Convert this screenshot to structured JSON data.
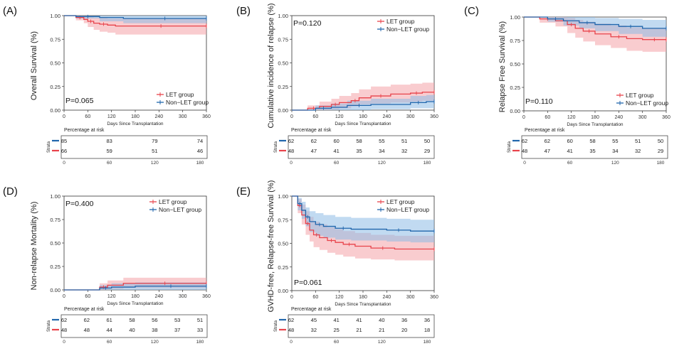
{
  "colors": {
    "let": "#e8434b",
    "nonlet": "#2166ac",
    "let_band": "#f4a3a7",
    "nonlet_band": "#8ebce6"
  },
  "common": {
    "xlabel": "Days Since Transplantation",
    "x_ticks": [
      "0",
      "60",
      "120",
      "180",
      "240",
      "300",
      "360"
    ],
    "risk_title": "Percentage at risk",
    "strata_label": "Strata",
    "risk_x_ticks": [
      "0",
      "60",
      "120",
      "180"
    ]
  },
  "chart_data": [
    {
      "panel_label": "(A)",
      "type": "line",
      "ylabel": "Overall Survival (%)",
      "pvalue": "P=0.065",
      "y_ticks": [
        "0.00",
        "0.25",
        "0.50",
        "0.75",
        "1.00"
      ],
      "xlim": [
        0,
        360
      ],
      "ylim": [
        0,
        1
      ],
      "legend": "bottom-right",
      "series": [
        {
          "name": "LET group",
          "color": "let",
          "x": [
            0,
            30,
            50,
            60,
            75,
            90,
            110,
            130,
            360
          ],
          "y": [
            1.0,
            0.98,
            0.96,
            0.94,
            0.92,
            0.91,
            0.9,
            0.89,
            0.89
          ],
          "lower": [
            1.0,
            0.95,
            0.92,
            0.88,
            0.85,
            0.83,
            0.82,
            0.8,
            0.8
          ],
          "upper": [
            1.0,
            1.0,
            1.0,
            0.99,
            0.98,
            0.98,
            0.97,
            0.97,
            0.97
          ]
        },
        {
          "name": "Non−LET group",
          "color": "nonlet",
          "x": [
            0,
            30,
            90,
            150,
            360
          ],
          "y": [
            1.0,
            0.99,
            0.98,
            0.97,
            0.97
          ],
          "lower": [
            1.0,
            0.97,
            0.94,
            0.92,
            0.92
          ],
          "upper": [
            1.0,
            1.0,
            1.0,
            1.0,
            1.0
          ]
        }
      ],
      "risk_rows": [
        [
          "85",
          "83",
          "79",
          "74"
        ],
        [
          "66",
          "59",
          "51",
          "46"
        ]
      ]
    },
    {
      "panel_label": "(B)",
      "type": "line",
      "ylabel": "Cumulative incidence of relapse (%)",
      "pvalue": "P=0.120",
      "y_ticks": [
        "0.00",
        "0.25",
        "0.50",
        "0.75",
        "1.00"
      ],
      "xlim": [
        0,
        360
      ],
      "ylim": [
        0,
        1
      ],
      "legend": "top-right",
      "series": [
        {
          "name": "LET group",
          "color": "let",
          "x": [
            0,
            40,
            70,
            100,
            120,
            150,
            170,
            200,
            250,
            300,
            330,
            360
          ],
          "y": [
            0.0,
            0.02,
            0.04,
            0.06,
            0.08,
            0.1,
            0.13,
            0.15,
            0.17,
            0.18,
            0.19,
            0.19
          ],
          "lower": [
            0.0,
            0.0,
            0.0,
            0.01,
            0.02,
            0.04,
            0.06,
            0.07,
            0.08,
            0.09,
            0.1,
            0.1
          ],
          "upper": [
            0.0,
            0.05,
            0.09,
            0.12,
            0.15,
            0.18,
            0.22,
            0.25,
            0.27,
            0.28,
            0.29,
            0.29
          ]
        },
        {
          "name": "Non−LET group",
          "color": "nonlet",
          "x": [
            0,
            60,
            100,
            140,
            200,
            300,
            340,
            360
          ],
          "y": [
            0.0,
            0.02,
            0.03,
            0.05,
            0.06,
            0.08,
            0.09,
            0.09
          ],
          "lower": [
            0.0,
            0.0,
            0.0,
            0.0,
            0.01,
            0.02,
            0.02,
            0.02
          ],
          "upper": [
            0.0,
            0.05,
            0.07,
            0.1,
            0.12,
            0.15,
            0.16,
            0.16
          ]
        }
      ],
      "risk_rows": [
        [
          "62",
          "62",
          "60",
          "58",
          "55",
          "51",
          "50"
        ],
        [
          "48",
          "47",
          "41",
          "35",
          "34",
          "32",
          "29"
        ]
      ]
    },
    {
      "panel_label": "(C)",
      "type": "line",
      "ylabel": "Relapse Free Survival (%)",
      "pvalue": "P=0.110",
      "y_ticks": [
        "0.00",
        "0.25",
        "0.50",
        "0.75",
        "1.00"
      ],
      "xlim": [
        0,
        360
      ],
      "ylim": [
        0,
        1
      ],
      "legend": "bottom-right",
      "series": [
        {
          "name": "LET group",
          "color": "let",
          "x": [
            0,
            40,
            80,
            110,
            130,
            150,
            180,
            220,
            260,
            300,
            360
          ],
          "y": [
            1.0,
            0.98,
            0.96,
            0.92,
            0.88,
            0.85,
            0.82,
            0.79,
            0.77,
            0.76,
            0.76
          ],
          "lower": [
            1.0,
            0.94,
            0.9,
            0.83,
            0.78,
            0.74,
            0.7,
            0.67,
            0.64,
            0.63,
            0.63
          ],
          "upper": [
            1.0,
            1.0,
            1.0,
            0.99,
            0.97,
            0.95,
            0.93,
            0.91,
            0.89,
            0.88,
            0.88
          ]
        },
        {
          "name": "Non−LET group",
          "color": "nonlet",
          "x": [
            0,
            60,
            100,
            140,
            180,
            240,
            300,
            360
          ],
          "y": [
            1.0,
            0.98,
            0.96,
            0.94,
            0.92,
            0.9,
            0.88,
            0.88
          ],
          "lower": [
            1.0,
            0.95,
            0.91,
            0.88,
            0.85,
            0.82,
            0.79,
            0.79
          ],
          "upper": [
            1.0,
            1.0,
            1.0,
            1.0,
            0.99,
            0.98,
            0.97,
            0.97
          ]
        }
      ],
      "risk_rows": [
        [
          "62",
          "62",
          "60",
          "58",
          "55",
          "51",
          "50"
        ],
        [
          "48",
          "47",
          "41",
          "35",
          "34",
          "32",
          "29"
        ]
      ]
    },
    {
      "panel_label": "(D)",
      "type": "line",
      "ylabel": "Non-relapse Mortality (%)",
      "pvalue": "P=0.400",
      "y_ticks": [
        "0.00",
        "0.25",
        "0.50",
        "0.75",
        "1.00"
      ],
      "xlim": [
        0,
        360
      ],
      "ylim": [
        0,
        1
      ],
      "legend": "top-right",
      "series": [
        {
          "name": "LET group",
          "color": "let",
          "x": [
            0,
            90,
            110,
            150,
            360
          ],
          "y": [
            0.0,
            0.03,
            0.05,
            0.07,
            0.07
          ],
          "lower": [
            0.0,
            0.0,
            0.01,
            0.02,
            0.02
          ],
          "upper": [
            0.0,
            0.07,
            0.1,
            0.13,
            0.13
          ]
        },
        {
          "name": "Non−LET group",
          "color": "nonlet",
          "x": [
            0,
            90,
            120,
            180,
            360
          ],
          "y": [
            0.0,
            0.02,
            0.03,
            0.04,
            0.04
          ],
          "lower": [
            0.0,
            0.0,
            0.0,
            0.0,
            0.0
          ],
          "upper": [
            0.0,
            0.05,
            0.07,
            0.08,
            0.08
          ]
        }
      ],
      "risk_rows": [
        [
          "62",
          "62",
          "61",
          "58",
          "56",
          "53",
          "51"
        ],
        [
          "48",
          "48",
          "44",
          "40",
          "38",
          "37",
          "33"
        ]
      ]
    },
    {
      "panel_label": "(E)",
      "type": "line",
      "ylabel": "GVHD-free, Relapse-free Survival (%)",
      "pvalue": "P=0.061",
      "y_ticks": [
        "0.00",
        "0.25",
        "0.50",
        "0.75",
        "1.00"
      ],
      "xlim": [
        0,
        360
      ],
      "ylim": [
        0,
        1
      ],
      "legend": "top-right",
      "series": [
        {
          "name": "LET group",
          "color": "let",
          "x": [
            0,
            15,
            25,
            35,
            45,
            55,
            70,
            90,
            110,
            130,
            160,
            200,
            260,
            360
          ],
          "y": [
            1.0,
            0.9,
            0.8,
            0.71,
            0.64,
            0.59,
            0.56,
            0.53,
            0.51,
            0.49,
            0.47,
            0.45,
            0.44,
            0.44
          ],
          "lower": [
            1.0,
            0.82,
            0.7,
            0.59,
            0.52,
            0.46,
            0.43,
            0.4,
            0.38,
            0.36,
            0.34,
            0.33,
            0.32,
            0.32
          ],
          "upper": [
            1.0,
            0.97,
            0.91,
            0.84,
            0.78,
            0.73,
            0.7,
            0.67,
            0.65,
            0.63,
            0.61,
            0.59,
            0.58,
            0.58
          ]
        },
        {
          "name": "Non−LET group",
          "color": "nonlet",
          "x": [
            0,
            15,
            25,
            35,
            45,
            60,
            80,
            110,
            150,
            240,
            300,
            360
          ],
          "y": [
            1.0,
            0.92,
            0.85,
            0.78,
            0.73,
            0.7,
            0.68,
            0.66,
            0.65,
            0.64,
            0.63,
            0.63
          ],
          "lower": [
            1.0,
            0.85,
            0.76,
            0.68,
            0.62,
            0.58,
            0.56,
            0.54,
            0.53,
            0.52,
            0.51,
            0.51
          ],
          "upper": [
            1.0,
            0.98,
            0.94,
            0.88,
            0.84,
            0.82,
            0.8,
            0.78,
            0.77,
            0.76,
            0.75,
            0.75
          ]
        }
      ],
      "risk_rows": [
        [
          "62",
          "45",
          "41",
          "41",
          "40",
          "36",
          "36"
        ],
        [
          "48",
          "32",
          "25",
          "21",
          "21",
          "20",
          "18"
        ]
      ]
    }
  ]
}
